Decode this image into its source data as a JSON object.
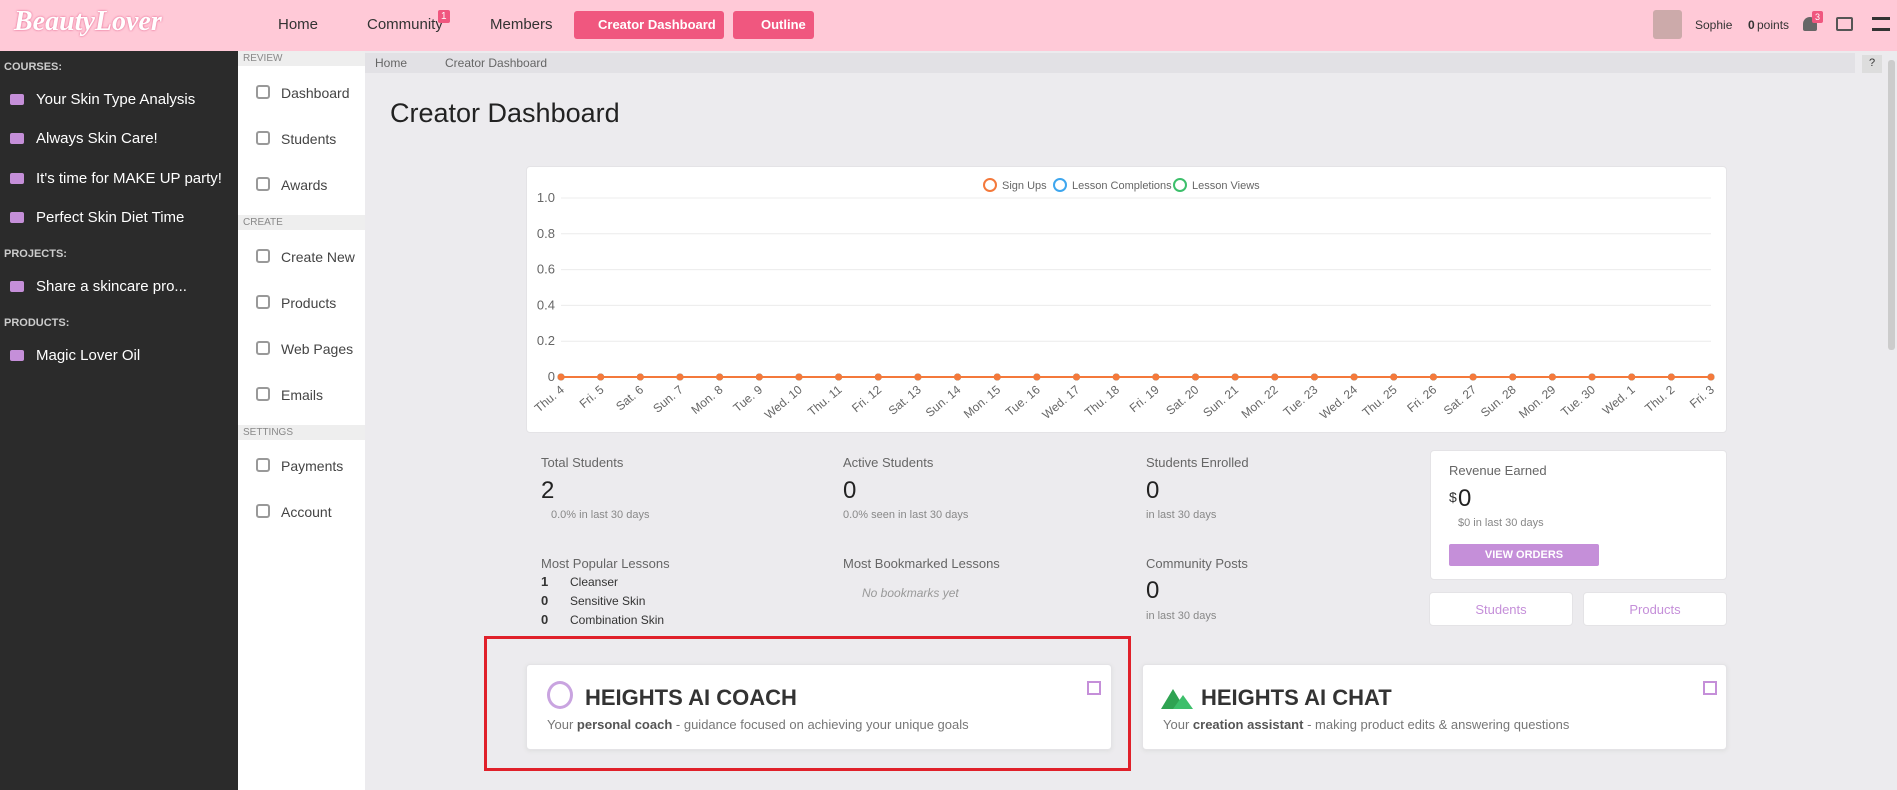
{
  "header": {
    "logo": "BeautyLover",
    "nav": [
      "Home",
      "Community",
      "Members",
      "Creator Dashboard",
      "Outline"
    ],
    "community_badge": "1",
    "user": "Sophie",
    "points": "0",
    "points_label": "points",
    "notif_badge": "3"
  },
  "sidebar": {
    "courses_label": "COURSES:",
    "courses": [
      "Your Skin Type Analysis",
      "Always Skin Care!",
      "It's time for MAKE UP party!",
      "Perfect Skin Diet Time"
    ],
    "projects_label": "PROJECTS:",
    "projects": [
      "Share a skincare pro..."
    ],
    "products_label": "PRODUCTS:",
    "products": [
      "Magic Lover Oil"
    ]
  },
  "menu": {
    "review_label": "REVIEW",
    "review": [
      "Dashboard",
      "Students",
      "Awards"
    ],
    "create_label": "CREATE",
    "create": [
      "Create New",
      "Products",
      "Web Pages",
      "Emails"
    ],
    "settings_label": "SETTINGS",
    "settings": [
      "Payments",
      "Account"
    ]
  },
  "breadcrumb": [
    "Home",
    "Creator Dashboard"
  ],
  "help": "?",
  "page_title": "Creator Dashboard",
  "chart_data": {
    "type": "line",
    "categories": [
      "Thu. 4",
      "Fri. 5",
      "Sat. 6",
      "Sun. 7",
      "Mon. 8",
      "Tue. 9",
      "Wed. 10",
      "Thu. 11",
      "Fri. 12",
      "Sat. 13",
      "Sun. 14",
      "Mon. 15",
      "Tue. 16",
      "Wed. 17",
      "Thu. 18",
      "Fri. 19",
      "Sat. 20",
      "Sun. 21",
      "Mon. 22",
      "Tue. 23",
      "Wed. 24",
      "Thu. 25",
      "Fri. 26",
      "Sat. 27",
      "Sun. 28",
      "Mon. 29",
      "Tue. 30",
      "Wed. 1",
      "Thu. 2",
      "Fri. 3"
    ],
    "series": [
      {
        "name": "Sign Ups",
        "color": "#f4793b",
        "values": [
          0,
          0,
          0,
          0,
          0,
          0,
          0,
          0,
          0,
          0,
          0,
          0,
          0,
          0,
          0,
          0,
          0,
          0,
          0,
          0,
          0,
          0,
          0,
          0,
          0,
          0,
          0,
          0,
          0,
          0
        ]
      },
      {
        "name": "Lesson Completions",
        "color": "#3ea6ee",
        "values": [
          0,
          0,
          0,
          0,
          0,
          0,
          0,
          0,
          0,
          0,
          0,
          0,
          0,
          0,
          0,
          0,
          0,
          0,
          0,
          0,
          0,
          0,
          0,
          0,
          0,
          0,
          0,
          0,
          0,
          0
        ]
      },
      {
        "name": "Lesson Views",
        "color": "#3dbf6b",
        "values": [
          0,
          0,
          0,
          0,
          0,
          0,
          0,
          0,
          0,
          0,
          0,
          0,
          0,
          0,
          0,
          0,
          0,
          0,
          0,
          0,
          0,
          0,
          0,
          0,
          0,
          0,
          0,
          0,
          0,
          0
        ]
      }
    ],
    "ylim": [
      0,
      1
    ],
    "yticks": [
      0,
      0.2,
      0.4,
      0.6,
      0.8,
      {
        "value": 1,
        "label": "1.0"
      }
    ],
    "grid": true
  },
  "stats": [
    {
      "label": "Total Students",
      "value": 2,
      "note": "0.0% in last 30 days"
    },
    {
      "label": "Active Students",
      "value": 0,
      "note": "0.0% seen in last 30 days"
    },
    {
      "label": "Students Enrolled",
      "value": 0,
      "note": "in last 30 days"
    }
  ],
  "revenue": {
    "label": "Revenue Earned",
    "currency": "$",
    "value": 0,
    "note": "$0 in last 30 days",
    "button": "VIEW ORDERS"
  },
  "popular": {
    "label": "Most Popular Lessons",
    "items": [
      {
        "count": 1,
        "name": "Cleanser"
      },
      {
        "count": 0,
        "name": "Sensitive Skin"
      },
      {
        "count": 0,
        "name": "Combination Skin"
      }
    ]
  },
  "bookmarked": {
    "label": "Most Bookmarked Lessons",
    "empty": "No bookmarks yet"
  },
  "community": {
    "label": "Community Posts",
    "value": 0,
    "note": "in last 30 days"
  },
  "quick_links": [
    "Students",
    "Products"
  ],
  "ai_cards": [
    {
      "title": "HEIGHTS AI COACH",
      "pre": "Your",
      "bold": "personal coach",
      "post": "- guidance focused on achieving your unique goals"
    },
    {
      "title": "HEIGHTS AI CHAT",
      "pre": "Your",
      "bold": "creation assistant",
      "post": "- making product edits & answering questions"
    }
  ]
}
